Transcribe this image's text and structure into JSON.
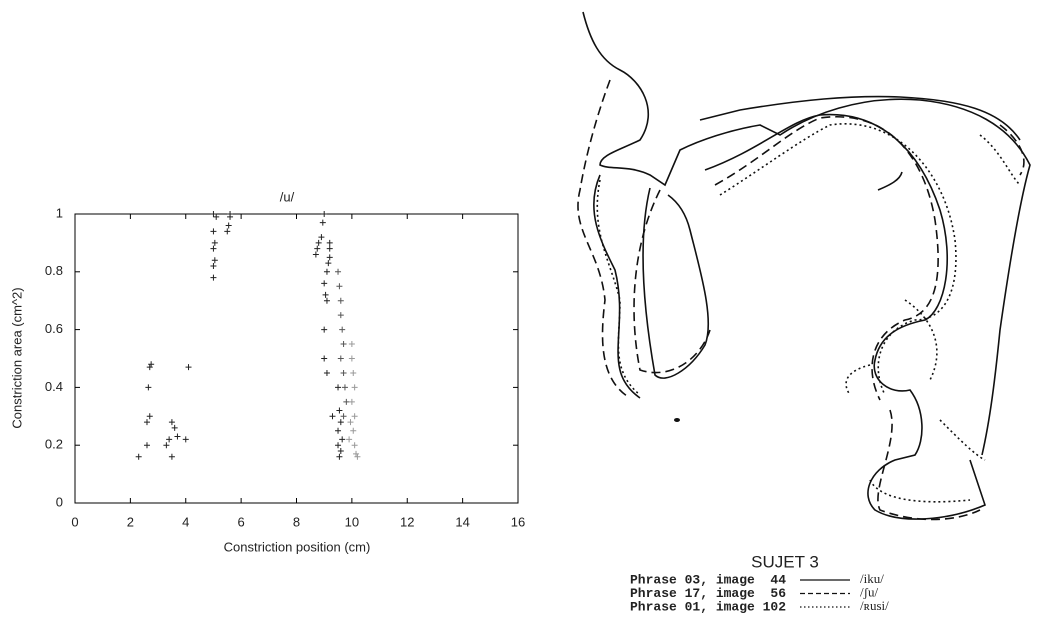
{
  "chart_data": {
    "type": "scatter",
    "title": "/u/",
    "xlabel": "Constriction position (cm)",
    "ylabel": "Constriction area (cm^2)",
    "xlim": [
      0,
      16
    ],
    "ylim": [
      0,
      1
    ],
    "xticks": [
      0,
      2,
      4,
      6,
      8,
      10,
      12,
      14,
      16
    ],
    "yticks": [
      0,
      0.2,
      0.4,
      0.6,
      0.8,
      1
    ],
    "series": [
      {
        "color": "#222222",
        "x": [
          2.3,
          2.6,
          2.6,
          2.7,
          2.65,
          2.7,
          2.75,
          3.3,
          3.4,
          3.5,
          3.5,
          3.7,
          3.6,
          4.0,
          4.1,
          5.0,
          5.0,
          5.05,
          5.0,
          5.05,
          5.0,
          5.0,
          5.1,
          5.5,
          5.55,
          5.6,
          5.6,
          8.7,
          8.75,
          8.8,
          8.9,
          8.95,
          9.0,
          9.0,
          9.05,
          9.1,
          9.1,
          9.15,
          9.2,
          9.2,
          9.2,
          9.0,
          9.0,
          9.1,
          9.3,
          9.5,
          9.55,
          9.6,
          9.5,
          9.6,
          9.65,
          9.55,
          9.5
        ],
        "y": [
          0.16,
          0.2,
          0.28,
          0.3,
          0.4,
          0.47,
          0.48,
          0.2,
          0.22,
          0.28,
          0.16,
          0.23,
          0.26,
          0.22,
          0.47,
          0.78,
          0.82,
          0.84,
          0.88,
          0.9,
          0.94,
          1.0,
          0.99,
          0.94,
          0.96,
          0.99,
          1.0,
          0.86,
          0.88,
          0.9,
          0.92,
          0.97,
          1.0,
          0.76,
          0.72,
          0.7,
          0.8,
          0.83,
          0.85,
          0.88,
          0.9,
          0.6,
          0.5,
          0.45,
          0.3,
          0.2,
          0.16,
          0.18,
          0.25,
          0.28,
          0.22,
          0.32,
          0.4
        ]
      },
      {
        "color": "#555555",
        "x": [
          9.5,
          9.55,
          9.6,
          9.6,
          9.65,
          9.7,
          9.6,
          9.7,
          9.75,
          9.8,
          9.7
        ],
        "y": [
          0.8,
          0.75,
          0.7,
          0.65,
          0.6,
          0.55,
          0.5,
          0.45,
          0.4,
          0.35,
          0.3
        ]
      },
      {
        "color": "#999999",
        "x": [
          10.0,
          10.0,
          10.05,
          10.1,
          10.0,
          10.1,
          10.05,
          10.1,
          10.15,
          10.2,
          9.9,
          9.95
        ],
        "y": [
          0.55,
          0.5,
          0.45,
          0.4,
          0.35,
          0.3,
          0.25,
          0.2,
          0.17,
          0.16,
          0.22,
          0.28
        ]
      }
    ]
  },
  "diagram": {
    "title": "SUJET 3",
    "legend": [
      {
        "label": "Phrase 03, image  44",
        "transcription": "/iku/"
      },
      {
        "label": "Phrase 17, image  56",
        "transcription": "/ʃu/"
      },
      {
        "label": "Phrase 01, image 102",
        "transcription": "/ʀusi/"
      }
    ]
  }
}
